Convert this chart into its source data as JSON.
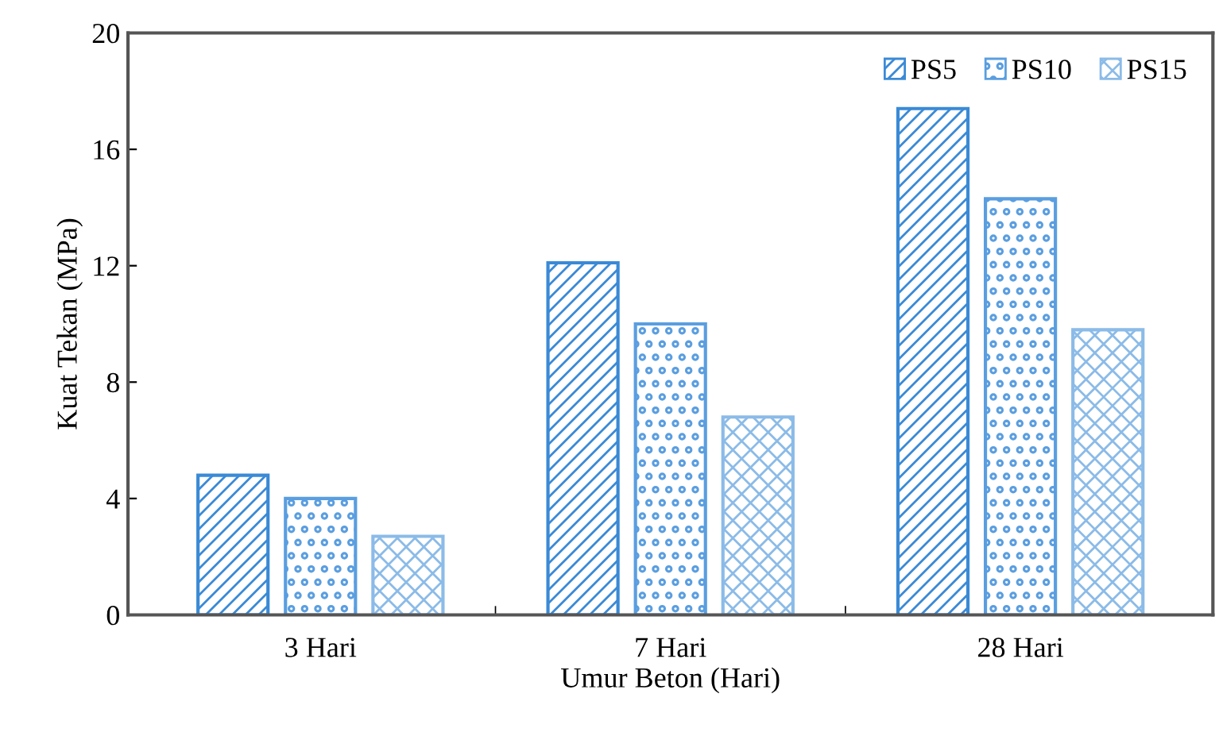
{
  "chart_data": {
    "type": "bar",
    "xlabel": "Umur Beton (Hari)",
    "ylabel": "Kuat Tekan (MPa)",
    "categories": [
      "3 Hari",
      "7 Hari",
      "28 Hari"
    ],
    "series": [
      {
        "name": "PS5",
        "color": "#3a8ad6",
        "values": [
          4.8,
          12.1,
          17.4
        ]
      },
      {
        "name": "PS10",
        "color": "#5a9ee0",
        "values": [
          4.0,
          10.0,
          14.3
        ]
      },
      {
        "name": "PS15",
        "color": "#8bbbe8",
        "values": [
          2.7,
          6.8,
          9.8
        ]
      }
    ],
    "ylim": [
      0,
      20
    ],
    "yticks": [
      0,
      4,
      8,
      12,
      16,
      20
    ],
    "grid": false,
    "legend": "top right"
  }
}
